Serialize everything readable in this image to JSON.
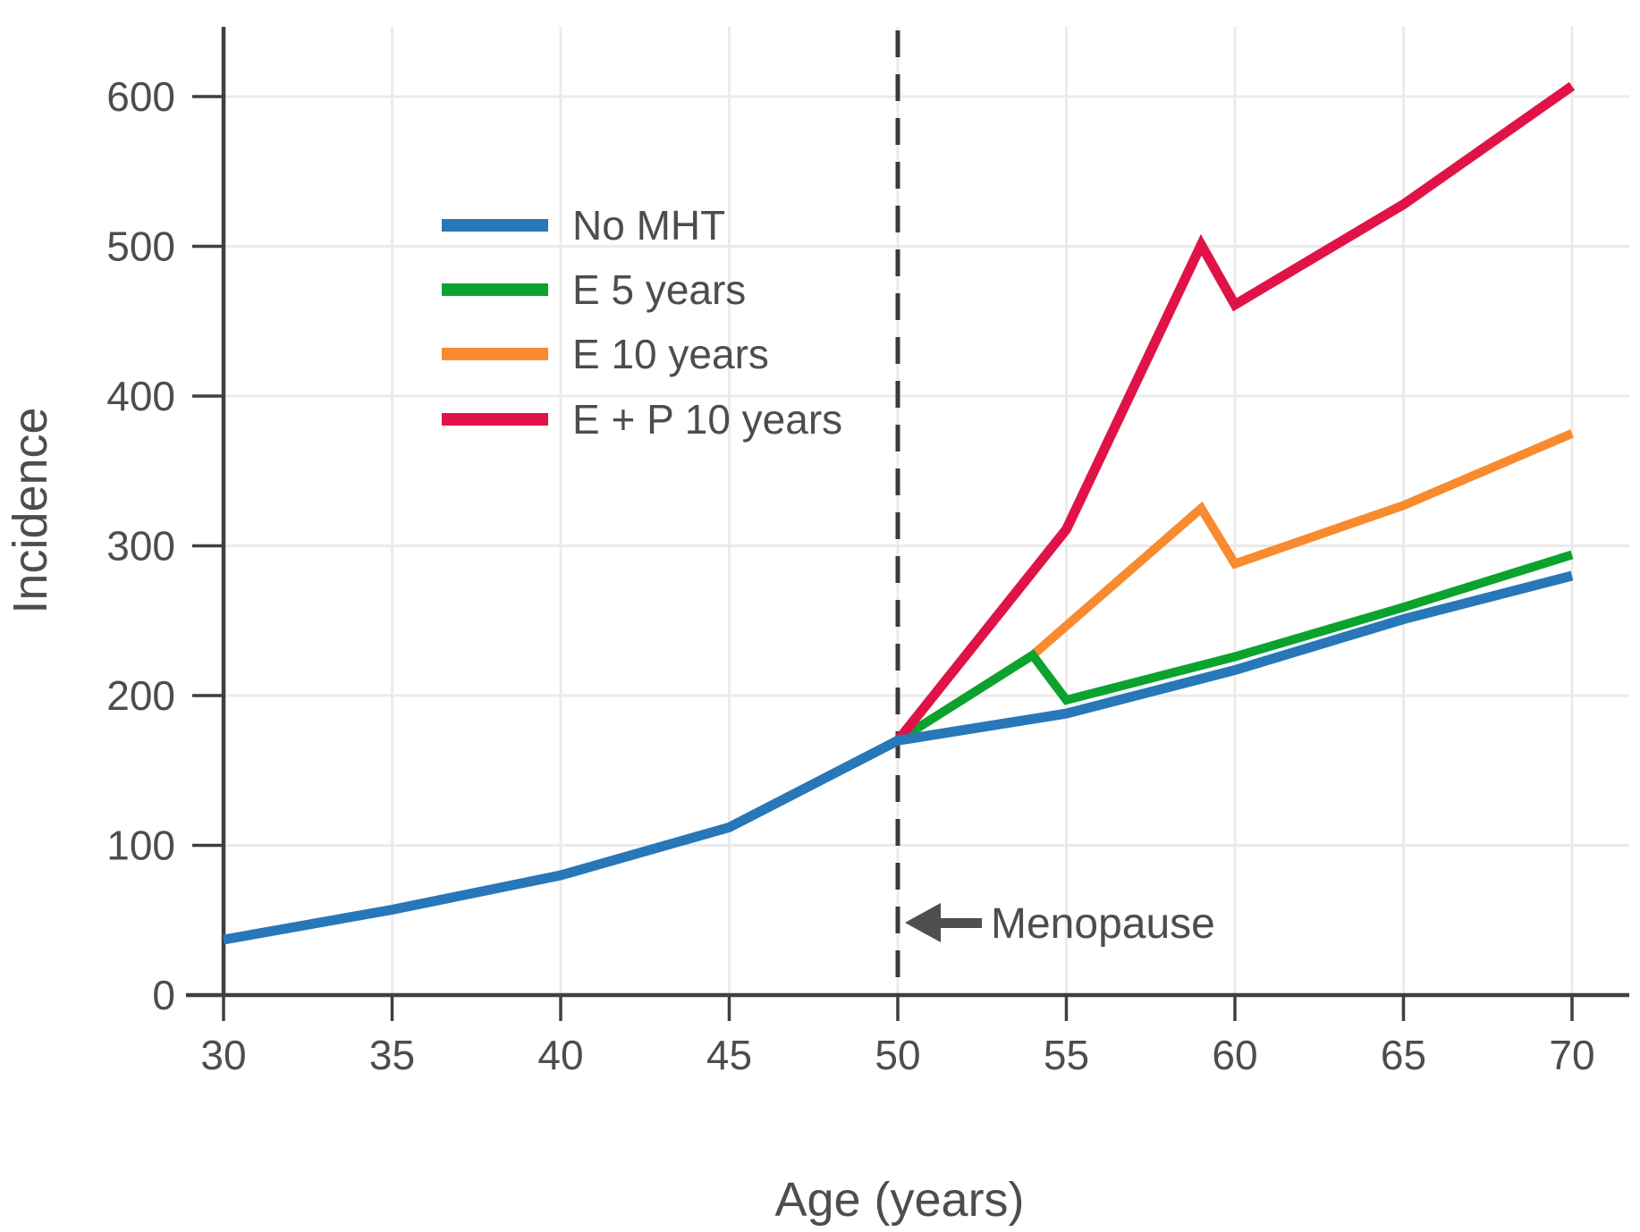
{
  "figure": {
    "y_axis_title": "Incidence",
    "x_axis_title": "Age (years)",
    "annotation_text": "Menopause",
    "annotation_icon": "left-arrow-icon"
  },
  "colors": {
    "axis": "#3f3f3f",
    "grid": "#ebebeb",
    "text": "#4d4d4d",
    "dashed_line": "#3a3a3a",
    "arrow": "#4f4f4f",
    "no_mht": "#2877b8",
    "e_5_years": "#0ba32e",
    "e_10_years": "#f88b2f",
    "e_p_10_years": "#e01347"
  },
  "chart_data": {
    "type": "line",
    "title": "",
    "xlabel": "Age (years)",
    "ylabel": "Incidence",
    "x_ticks": [
      30,
      35,
      40,
      45,
      50,
      55,
      60,
      65,
      70
    ],
    "y_ticks": [
      0,
      100,
      200,
      300,
      400,
      500,
      600
    ],
    "xlim": [
      30,
      70
    ],
    "ylim": [
      0,
      648
    ],
    "grid": true,
    "legend_position": "upper-left-inside",
    "vline": {
      "x": 50,
      "style": "dashed",
      "label": "Menopause"
    },
    "series": [
      {
        "name": "No MHT",
        "color_key": "no_mht",
        "stroke_width": 11,
        "points": [
          [
            30,
            37
          ],
          [
            35,
            57
          ],
          [
            40,
            80
          ],
          [
            45,
            112
          ],
          [
            50,
            170
          ],
          [
            55,
            188
          ],
          [
            60,
            217
          ],
          [
            65,
            251
          ],
          [
            70,
            280
          ]
        ]
      },
      {
        "name": "E 5 years",
        "color_key": "e_5_years",
        "stroke_width": 10,
        "points": [
          [
            50,
            170
          ],
          [
            54,
            227
          ],
          [
            55,
            197
          ],
          [
            60,
            226
          ],
          [
            65,
            259
          ],
          [
            70,
            294
          ]
        ]
      },
      {
        "name": "E 10 years",
        "color_key": "e_10_years",
        "stroke_width": 10,
        "points": [
          [
            50,
            170
          ],
          [
            54,
            227
          ],
          [
            59,
            325
          ],
          [
            60,
            288
          ],
          [
            65,
            327
          ],
          [
            70,
            375
          ]
        ]
      },
      {
        "name": "E + P 10 years",
        "color_key": "e_p_10_years",
        "stroke_width": 11,
        "points": [
          [
            50,
            170
          ],
          [
            55,
            311
          ],
          [
            59,
            501
          ],
          [
            60,
            461
          ],
          [
            65,
            528
          ],
          [
            70,
            607
          ]
        ]
      }
    ],
    "legend_order": [
      "No MHT",
      "E 5 years",
      "E 10 years",
      "E + P 10 years"
    ]
  }
}
